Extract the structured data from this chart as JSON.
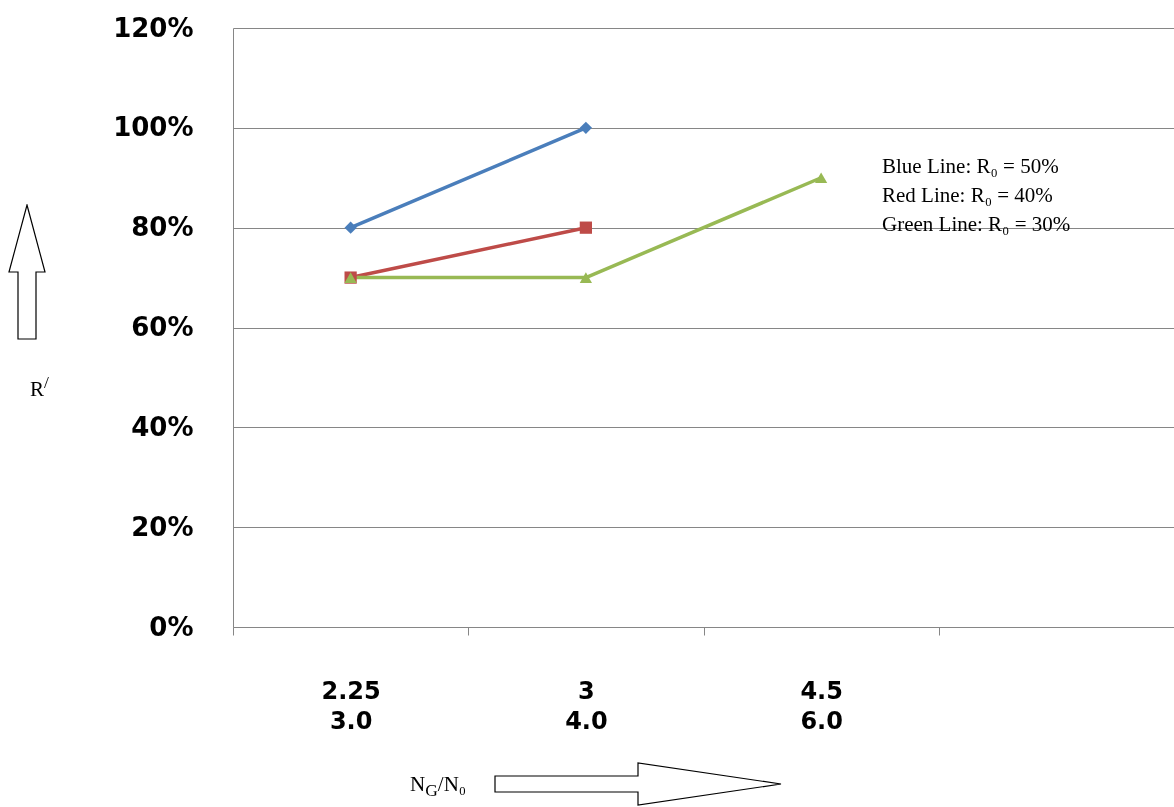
{
  "chart_data": {
    "type": "line",
    "categories": [
      "2.25\n3.0",
      "3\n4.0",
      "4.5\n6.0",
      null
    ],
    "xlabel": "N$_{G}$/N₀",
    "ylabel": "R$^{/}$",
    "ylim": [
      0,
      120
    ],
    "yticks": [
      {
        "value": 0,
        "label": "0%"
      },
      {
        "value": 20,
        "label": "20%"
      },
      {
        "value": 40,
        "label": "40%"
      },
      {
        "value": 60,
        "label": "60%"
      },
      {
        "value": 80,
        "label": "80%"
      },
      {
        "value": 100,
        "label": "100%"
      },
      {
        "value": 120,
        "label": "120%"
      }
    ],
    "grid": "y",
    "legend": false,
    "line_style": "solid",
    "series": [
      {
        "color": "#4a7ebb",
        "marker": "diamond",
        "values": [
          80,
          100,
          null,
          null
        ]
      },
      {
        "color": "#be4b48",
        "marker": "square",
        "values": [
          70,
          80,
          null,
          null
        ]
      },
      {
        "color": "#98b954",
        "marker": "triangle",
        "values": [
          70,
          70,
          90,
          null
        ]
      }
    ],
    "annotations": [
      "Blue Line: R₀ = 50%",
      "Red Line: R₀ = 40%",
      "Green Line: R₀ = 30%"
    ]
  }
}
